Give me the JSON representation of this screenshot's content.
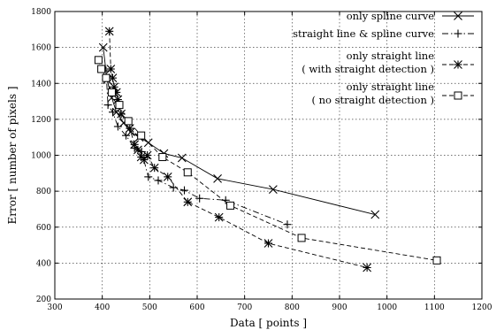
{
  "chart_data": {
    "type": "line",
    "xlabel": "Data [ points ]",
    "ylabel": "Error [ number of pixels ]",
    "xlim": [
      300,
      1200
    ],
    "ylim": [
      200,
      1800
    ],
    "xticks": [
      300,
      400,
      500,
      600,
      700,
      800,
      900,
      1000,
      1100,
      1200
    ],
    "yticks": [
      200,
      400,
      600,
      800,
      1000,
      1200,
      1400,
      1600,
      1800
    ],
    "grid": "dotted",
    "legend_position": "top-right",
    "series": [
      {
        "name": "only spline curve",
        "line": "solid",
        "marker": "x",
        "points": [
          [
            402,
            1600
          ],
          [
            410,
            1420
          ],
          [
            420,
            1320
          ],
          [
            430,
            1240
          ],
          [
            445,
            1180
          ],
          [
            460,
            1130
          ],
          [
            478,
            1100
          ],
          [
            497,
            1070
          ],
          [
            530,
            1010
          ],
          [
            568,
            985
          ],
          [
            643,
            870
          ],
          [
            760,
            810
          ],
          [
            975,
            670
          ]
        ]
      },
      {
        "name": "straight line & spline curve",
        "line": "dash-dot",
        "marker": "+",
        "points": [
          [
            408,
            1470
          ],
          [
            412,
            1280
          ],
          [
            422,
            1240
          ],
          [
            433,
            1160
          ],
          [
            450,
            1110
          ],
          [
            468,
            1040
          ],
          [
            483,
            1020
          ],
          [
            497,
            880
          ],
          [
            518,
            860
          ],
          [
            550,
            820
          ],
          [
            573,
            805
          ],
          [
            605,
            760
          ],
          [
            660,
            750
          ],
          [
            790,
            615
          ]
        ]
      },
      {
        "name": "only straight line\n( with straight detection )",
        "line": "dashed",
        "marker": "asterisk",
        "points": [
          [
            415,
            1690
          ],
          [
            418,
            1480
          ],
          [
            422,
            1430
          ],
          [
            425,
            1380
          ],
          [
            430,
            1350
          ],
          [
            433,
            1310
          ],
          [
            440,
            1230
          ],
          [
            458,
            1150
          ],
          [
            468,
            1060
          ],
          [
            475,
            1030
          ],
          [
            482,
            990
          ],
          [
            488,
            975
          ],
          [
            495,
            1000
          ],
          [
            510,
            930
          ],
          [
            538,
            880
          ],
          [
            580,
            740
          ],
          [
            646,
            655
          ],
          [
            750,
            510
          ],
          [
            958,
            375
          ]
        ]
      },
      {
        "name": "only straight line\n( no straight detection )",
        "line": "dashed",
        "marker": "square",
        "points": [
          [
            392,
            1530
          ],
          [
            398,
            1480
          ],
          [
            408,
            1430
          ],
          [
            420,
            1350
          ],
          [
            436,
            1280
          ],
          [
            455,
            1190
          ],
          [
            482,
            1110
          ],
          [
            527,
            990
          ],
          [
            580,
            905
          ],
          [
            670,
            720
          ],
          [
            820,
            540
          ],
          [
            1105,
            415
          ]
        ]
      }
    ]
  }
}
